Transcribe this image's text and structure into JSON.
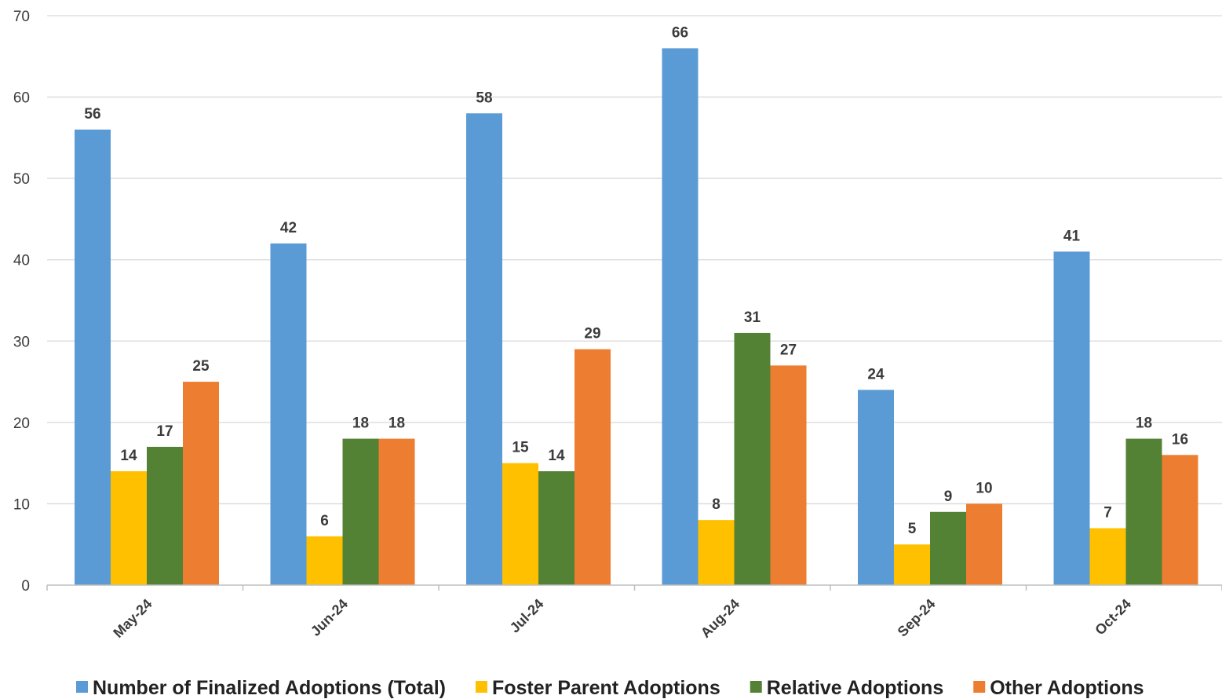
{
  "chart_data": {
    "type": "bar",
    "categories": [
      "May-24",
      "Jun-24",
      "Jul-24",
      "Aug-24",
      "Sep-24",
      "Oct-24"
    ],
    "series": [
      {
        "name": "Number of Finalized Adoptions (Total)",
        "color": "#5b9bd5",
        "values": [
          56,
          42,
          58,
          66,
          24,
          41
        ]
      },
      {
        "name": "Foster Parent Adoptions",
        "color": "#ffc000",
        "values": [
          14,
          6,
          15,
          8,
          5,
          7
        ]
      },
      {
        "name": "Relative Adoptions",
        "color": "#548235",
        "values": [
          17,
          18,
          14,
          31,
          9,
          18
        ]
      },
      {
        "name": "Other Adoptions",
        "color": "#ed7d31",
        "values": [
          25,
          18,
          29,
          27,
          10,
          16
        ]
      }
    ],
    "y_ticks": [
      "0",
      "10",
      "20",
      "30",
      "40",
      "50",
      "60",
      "70"
    ],
    "ylim": [
      0,
      70
    ],
    "grid": true,
    "data_labels": true,
    "legend_position": "bottom",
    "title": "",
    "xlabel": "",
    "ylabel": ""
  }
}
